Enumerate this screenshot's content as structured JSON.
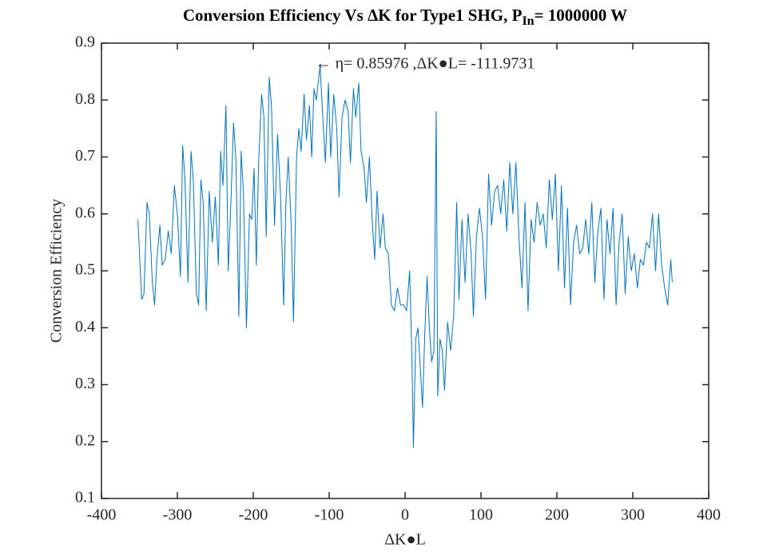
{
  "chart_data": {
    "type": "line",
    "title": "Conversion Efficiency Vs ΔK for Type1 SHG, P",
    "title_subscript": "In",
    "title_suffix": "= 1000000 W",
    "x_label": "ΔK●L",
    "y_label": "Conversion Efficiency",
    "color": "#0072bd",
    "xlim": [
      -400,
      400
    ],
    "ylim": [
      0.1,
      0.9
    ],
    "xticks": [
      -400,
      -300,
      -200,
      -100,
      0,
      100,
      200,
      300,
      400
    ],
    "yticks": [
      0.1,
      0.2,
      0.3,
      0.4,
      0.5,
      0.6,
      0.7,
      0.8,
      0.9
    ],
    "annotation": {
      "text": "← η= 0.85976 ,ΔK●L= -111.9731",
      "x": -111.9731,
      "y": 0.85976
    },
    "x": [
      -352,
      -347,
      -344,
      -340,
      -337,
      -333,
      -330,
      -327,
      -323,
      -320,
      -316,
      -312,
      -308,
      -304,
      -300,
      -296,
      -293,
      -290,
      -286,
      -282,
      -279,
      -275,
      -272,
      -269,
      -266,
      -262,
      -258,
      -254,
      -250,
      -246,
      -243,
      -240,
      -236,
      -233,
      -230,
      -226,
      -223,
      -219,
      -216,
      -213,
      -209,
      -205,
      -202,
      -199,
      -196,
      -193,
      -189,
      -186,
      -183,
      -179,
      -176,
      -172,
      -168,
      -164,
      -160,
      -157,
      -154,
      -150,
      -147,
      -143,
      -140,
      -137,
      -133,
      -130,
      -126,
      -123,
      -120,
      -117,
      -112,
      -108,
      -105,
      -101,
      -98,
      -94,
      -90,
      -87,
      -83,
      -79,
      -75,
      -72,
      -68,
      -65,
      -61,
      -58,
      -54,
      -51,
      -47,
      -43,
      -40,
      -37,
      -33,
      -29,
      -26,
      -22,
      -18,
      -14,
      -10,
      -6,
      -2,
      2,
      6,
      9,
      11,
      14,
      17,
      20,
      23,
      26,
      29,
      32,
      35,
      38,
      41,
      43,
      46,
      49,
      52,
      56,
      60,
      64,
      68,
      71,
      75,
      79,
      83,
      87,
      90,
      94,
      98,
      102,
      106,
      110,
      114,
      118,
      122,
      126,
      130,
      134,
      138,
      142,
      146,
      150,
      154,
      158,
      162,
      166,
      170,
      174,
      178,
      182,
      186,
      190,
      194,
      198,
      202,
      206,
      210,
      214,
      218,
      222,
      226,
      230,
      234,
      238,
      242,
      246,
      250,
      254,
      258,
      262,
      266,
      270,
      274,
      278,
      282,
      286,
      290,
      294,
      298,
      302,
      306,
      310,
      314,
      318,
      322,
      326,
      330,
      334,
      338,
      342,
      346,
      350,
      352
    ],
    "values": [
      0.59,
      0.45,
      0.46,
      0.62,
      0.6,
      0.48,
      0.44,
      0.52,
      0.58,
      0.51,
      0.52,
      0.57,
      0.53,
      0.65,
      0.6,
      0.49,
      0.72,
      0.66,
      0.48,
      0.71,
      0.66,
      0.46,
      0.44,
      0.66,
      0.62,
      0.43,
      0.64,
      0.55,
      0.63,
      0.51,
      0.71,
      0.65,
      0.79,
      0.5,
      0.6,
      0.76,
      0.7,
      0.42,
      0.71,
      0.64,
      0.4,
      0.6,
      0.59,
      0.68,
      0.51,
      0.69,
      0.81,
      0.77,
      0.56,
      0.84,
      0.79,
      0.58,
      0.74,
      0.63,
      0.44,
      0.62,
      0.7,
      0.58,
      0.41,
      0.7,
      0.75,
      0.71,
      0.81,
      0.73,
      0.79,
      0.7,
      0.82,
      0.8,
      0.86,
      0.76,
      0.69,
      0.83,
      0.7,
      0.81,
      0.75,
      0.63,
      0.77,
      0.8,
      0.78,
      0.69,
      0.82,
      0.77,
      0.83,
      0.71,
      0.68,
      0.62,
      0.7,
      0.58,
      0.52,
      0.64,
      0.54,
      0.6,
      0.54,
      0.53,
      0.44,
      0.43,
      0.47,
      0.44,
      0.44,
      0.43,
      0.5,
      0.35,
      0.19,
      0.38,
      0.4,
      0.33,
      0.26,
      0.39,
      0.49,
      0.4,
      0.34,
      0.36,
      0.78,
      0.28,
      0.38,
      0.36,
      0.29,
      0.41,
      0.36,
      0.42,
      0.62,
      0.45,
      0.59,
      0.48,
      0.6,
      0.53,
      0.42,
      0.56,
      0.61,
      0.56,
      0.45,
      0.67,
      0.58,
      0.64,
      0.65,
      0.6,
      0.66,
      0.57,
      0.69,
      0.6,
      0.69,
      0.56,
      0.47,
      0.62,
      0.43,
      0.59,
      0.55,
      0.62,
      0.58,
      0.6,
      0.54,
      0.66,
      0.59,
      0.67,
      0.5,
      0.65,
      0.47,
      0.61,
      0.44,
      0.55,
      0.58,
      0.53,
      0.54,
      0.59,
      0.53,
      0.62,
      0.48,
      0.57,
      0.61,
      0.45,
      0.59,
      0.53,
      0.61,
      0.44,
      0.55,
      0.6,
      0.46,
      0.56,
      0.5,
      0.53,
      0.47,
      0.52,
      0.51,
      0.55,
      0.54,
      0.6,
      0.5,
      0.6,
      0.51,
      0.47,
      0.44,
      0.52,
      0.48
    ]
  }
}
